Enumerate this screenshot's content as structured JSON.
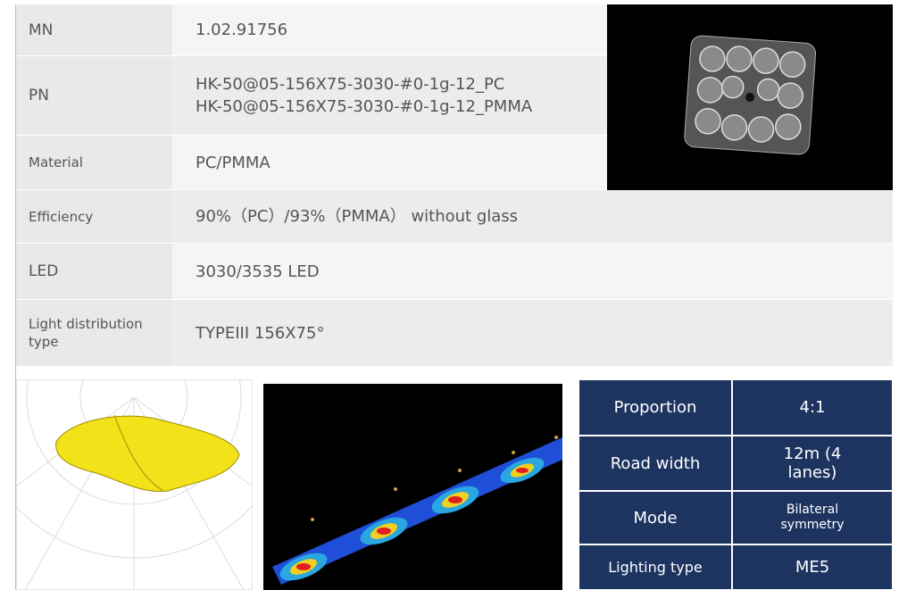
{
  "spec_table": {
    "rows": [
      {
        "label": "MN",
        "value": [
          "1.02.91756"
        ]
      },
      {
        "label": "PN",
        "value": [
          "HK-50@05-156X75-3030-#0-1g-12_PC",
          "HK-50@05-156X75-3030-#0-1g-12_PMMA"
        ]
      },
      {
        "label": "Material",
        "value": [
          "PC/PMMA"
        ]
      },
      {
        "label": "Efficiency",
        "value": [
          "90%（PC）/93%（PMMA） without glass"
        ]
      },
      {
        "label": "LED",
        "value": [
          "3030/3535 LED"
        ]
      },
      {
        "label": "Light distribution type",
        "value": [
          "TYPEIII 156X75°"
        ]
      }
    ]
  },
  "summary_table": {
    "rows": [
      [
        "Proportion",
        "4:1"
      ],
      [
        "Road width",
        "12m (4 lanes)"
      ],
      [
        "Mode",
        "Bilateral symmetry"
      ],
      [
        "Lighting type",
        "ME5"
      ]
    ]
  }
}
